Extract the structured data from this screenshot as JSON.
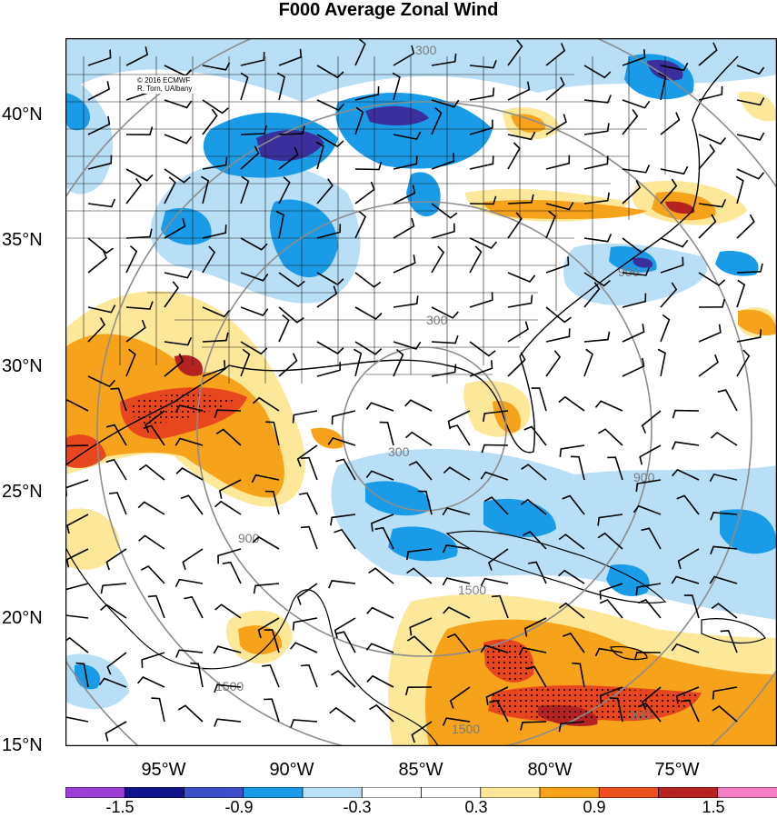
{
  "title": "F000 Average Zonal Wind",
  "credit": {
    "line1": "© 2016 ECMWF",
    "line2": "R. Torn, UAlbany"
  },
  "axes": {
    "latitude_labels": [
      "40°N",
      "35°N",
      "30°N",
      "25°N",
      "20°N",
      "15°N"
    ],
    "longitude_labels": [
      "95°W",
      "90°W",
      "85°W",
      "80°W",
      "75°W"
    ]
  },
  "contour_labels": [
    "300",
    "900",
    "300",
    "900",
    "900",
    "1500",
    "1500",
    "300",
    "900",
    "1500"
  ],
  "colorbar": {
    "tick_labels": [
      "-1.5",
      "-0.9",
      "-0.3",
      "0.3",
      "0.9",
      "1.5"
    ],
    "colors": [
      "#9b3fd6",
      "#12128a",
      "#3b4fc8",
      "#1a9be8",
      "#b9dff7",
      "#ffffff",
      "#ffffff",
      "#fde89a",
      "#f6a21b",
      "#ec4e1e",
      "#b42222",
      "#f47fc4"
    ]
  },
  "colors": {
    "strong_negative": "#3a2f9c",
    "moderate_negative": "#1a9be8",
    "weak_negative": "#b9dff7",
    "weak_positive": "#fde89a",
    "moderate_positive": "#f6a21b",
    "strong_positive": "#e8461f",
    "range_circles": "#8c8c8c",
    "wind_barbs": "#000000"
  }
}
